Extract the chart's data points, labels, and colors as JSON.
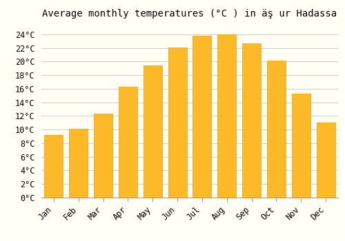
{
  "title": "Average monthly temperatures (°C ) in äş ur Hadassa",
  "months": [
    "Jan",
    "Feb",
    "Mar",
    "Apr",
    "May",
    "Jun",
    "Jul",
    "Aug",
    "Sep",
    "Oct",
    "Nov",
    "Dec"
  ],
  "values": [
    9.2,
    10.1,
    12.3,
    16.3,
    19.4,
    22.1,
    23.8,
    24.0,
    22.7,
    20.1,
    15.3,
    11.0
  ],
  "bar_color": "#FDB927",
  "bar_edge_color": "#E8A000",
  "background_color": "#FFFFF5",
  "grid_color": "#CCCCCC",
  "ytick_labels": [
    "0°C",
    "2°C",
    "4°C",
    "6°C",
    "8°C",
    "10°C",
    "12°C",
    "14°C",
    "16°C",
    "18°C",
    "20°C",
    "22°C",
    "24°C"
  ],
  "ytick_values": [
    0,
    2,
    4,
    6,
    8,
    10,
    12,
    14,
    16,
    18,
    20,
    22,
    24
  ],
  "ylim": [
    0,
    25.5
  ],
  "title_fontsize": 10,
  "tick_fontsize": 8.5
}
